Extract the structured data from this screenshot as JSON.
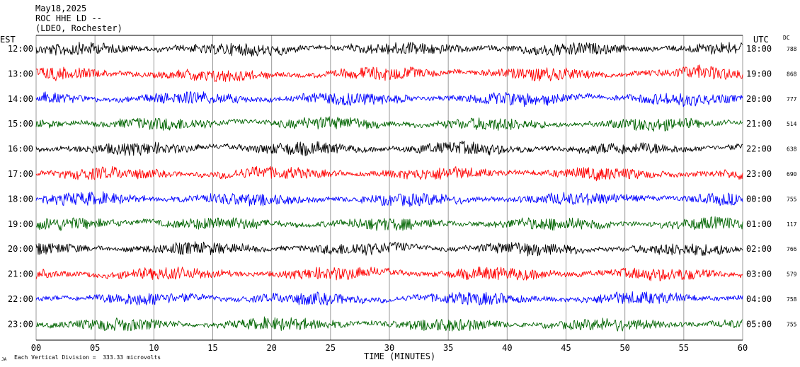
{
  "header": {
    "line1": "May18,2025",
    "line2": "ROC HHE LD --",
    "line3": "(LDEO, Rochester)"
  },
  "labels": {
    "left_zone": "EST",
    "right_zone": "UTC",
    "dc_header": "DC",
    "footer_scale": "Each Vertical Division =  333.33 microvolts",
    "footer_mark": "JA"
  },
  "chart_data": {
    "type": "line",
    "xlabel": "TIME (MINUTES)",
    "xlim": [
      0,
      60
    ],
    "x_ticks": [
      "00",
      "05",
      "10",
      "15",
      "20",
      "25",
      "30",
      "35",
      "40",
      "45",
      "50",
      "55",
      "60"
    ],
    "colors": [
      "#000000",
      "#ff0000",
      "#0000ff",
      "#006400"
    ],
    "rows": [
      {
        "est": "12:00",
        "utc": "18:00",
        "dc": "788",
        "color": "#000000"
      },
      {
        "est": "13:00",
        "utc": "19:00",
        "dc": "868",
        "color": "#ff0000"
      },
      {
        "est": "14:00",
        "utc": "20:00",
        "dc": "777",
        "color": "#0000ff"
      },
      {
        "est": "15:00",
        "utc": "21:00",
        "dc": "514",
        "color": "#006400"
      },
      {
        "est": "16:00",
        "utc": "22:00",
        "dc": "638",
        "color": "#000000"
      },
      {
        "est": "17:00",
        "utc": "23:00",
        "dc": "690",
        "color": "#ff0000"
      },
      {
        "est": "18:00",
        "utc": "00:00",
        "dc": "755",
        "color": "#0000ff"
      },
      {
        "est": "19:00",
        "utc": "01:00",
        "dc": "117",
        "color": "#006400"
      },
      {
        "est": "20:00",
        "utc": "02:00",
        "dc": "766",
        "color": "#000000"
      },
      {
        "est": "21:00",
        "utc": "03:00",
        "dc": "579",
        "color": "#ff0000"
      },
      {
        "est": "22:00",
        "utc": "04:00",
        "dc": "758",
        "color": "#0000ff"
      },
      {
        "est": "23:00",
        "utc": "05:00",
        "dc": "755",
        "color": "#006400"
      }
    ]
  }
}
